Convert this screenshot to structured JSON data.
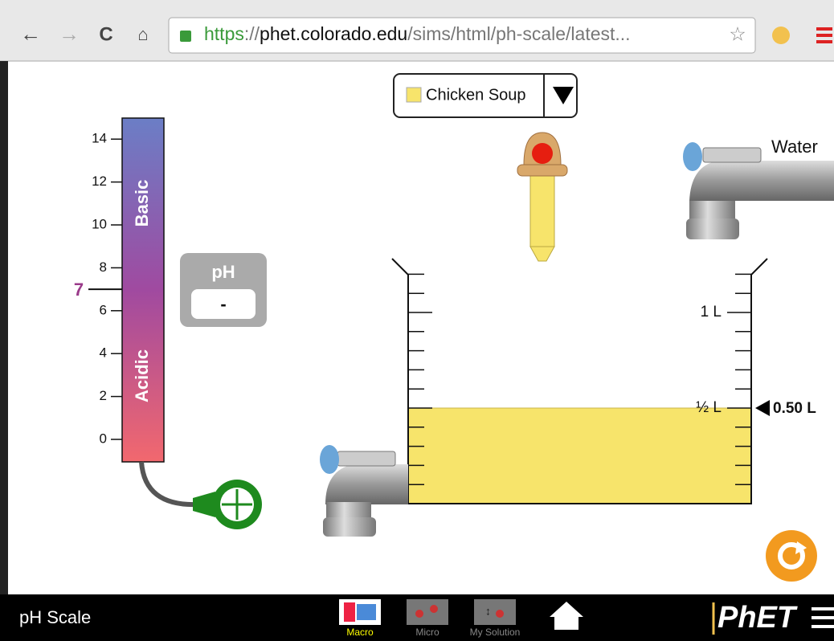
{
  "browser": {
    "url": [
      {
        "text": "https"
      },
      {
        "text": "://"
      },
      {
        "text": "phet.colorado.edu"
      },
      {
        "text": "/sims/html/ph-scale/latest..."
      }
    ]
  },
  "solute_selector": {
    "selected": "Chicken Soup"
  },
  "ph_scale": {
    "ticks": [
      0,
      2,
      4,
      6,
      8,
      10,
      12,
      14
    ],
    "neutral": 7,
    "basic_label": "Basic",
    "acidic_label": "Acidic"
  },
  "ph_meter": {
    "label": "pH",
    "reading": "-"
  },
  "water_faucet": {
    "label": "Water"
  },
  "beaker": {
    "marks": [
      "1 L",
      "½ L"
    ],
    "volume": "0.50 L"
  },
  "navbar": {
    "title": "pH Scale",
    "tabs": [
      "Macro",
      "Micro",
      "My Solution"
    ],
    "brand": "PhET"
  }
}
